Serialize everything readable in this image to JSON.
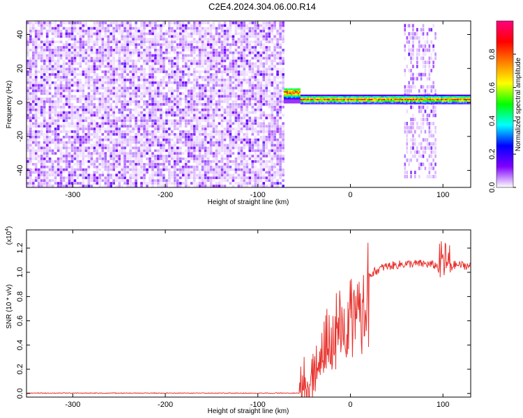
{
  "figure_title": "C2E4.2024.304.06.00.R14",
  "chart_data": [
    {
      "type": "heatmap",
      "xlabel": "Height of straight line (km)",
      "ylabel": "Frequency (Hz)",
      "xlim": [
        -350,
        130
      ],
      "ylim": [
        -50,
        48
      ],
      "xticks": [
        -300,
        -200,
        -100,
        0,
        100
      ],
      "yticks": [
        -40,
        -20,
        0,
        20,
        40
      ],
      "colorbar": {
        "label": "Normalized spectral amplitude",
        "range": [
          0,
          1
        ],
        "ticks": [
          "0.0",
          "0.2",
          "0.4",
          "0.6",
          "0.8"
        ],
        "colors": [
          "#ffffff",
          "#8000ff",
          "#0000ff",
          "#00ffff",
          "#00ff00",
          "#ffff00",
          "#ff8000",
          "#ff0000",
          "#ff0080"
        ]
      },
      "regions": [
        {
          "name": "broadband noise",
          "x": [
            -350,
            -72
          ],
          "y": [
            -50,
            48
          ],
          "level": 0.12
        },
        {
          "name": "signal line",
          "x": [
            -72,
            130
          ],
          "frequency_hz": 1.5,
          "level": 0.9
        },
        {
          "name": "burst",
          "x": [
            58,
            92
          ],
          "y": [
            -45,
            45
          ],
          "level": 0.15
        }
      ],
      "grid": false,
      "legend": "right colorbar"
    },
    {
      "type": "line",
      "xlabel": "Height of straight line (km)",
      "ylabel": "SNR (10 * v/v)",
      "yscale_label": "(x10",
      "yscale_exponent": "4",
      "xlim": [
        -350,
        130
      ],
      "ylim": [
        -0.03,
        1.35
      ],
      "xticks": [
        -300,
        -200,
        -100,
        0,
        100
      ],
      "yticks": [
        "0.0",
        "0.2",
        "0.4",
        "0.6",
        "0.8",
        "1.0",
        "1.2"
      ],
      "ytick_values": [
        0,
        0.2,
        0.4,
        0.6,
        0.8,
        1.0,
        1.2
      ],
      "series": [
        {
          "color": "#e8322d",
          "x": [
            -350,
            -300,
            -250,
            -200,
            -150,
            -100,
            -60,
            -55,
            -50,
            -45,
            -40,
            -35,
            -30,
            -25,
            -20,
            -15,
            -10,
            -5,
            0,
            5,
            10,
            15,
            20,
            25,
            30,
            35,
            40,
            50,
            60,
            70,
            80,
            90,
            95,
            100,
            105,
            110,
            120,
            130
          ],
          "y": [
            0.0,
            0.0,
            0.0,
            0.0,
            0.0,
            0.0,
            0.0,
            0.0,
            0.05,
            0.1,
            0.2,
            0.3,
            0.4,
            0.45,
            0.5,
            0.55,
            0.6,
            0.65,
            0.7,
            0.8,
            0.9,
            0.95,
            0.98,
            1.0,
            1.02,
            1.04,
            1.05,
            1.06,
            1.07,
            1.07,
            1.07,
            1.06,
            1.05,
            1.1,
            1.07,
            1.06,
            1.06,
            1.05
          ]
        }
      ],
      "grid": false
    }
  ]
}
